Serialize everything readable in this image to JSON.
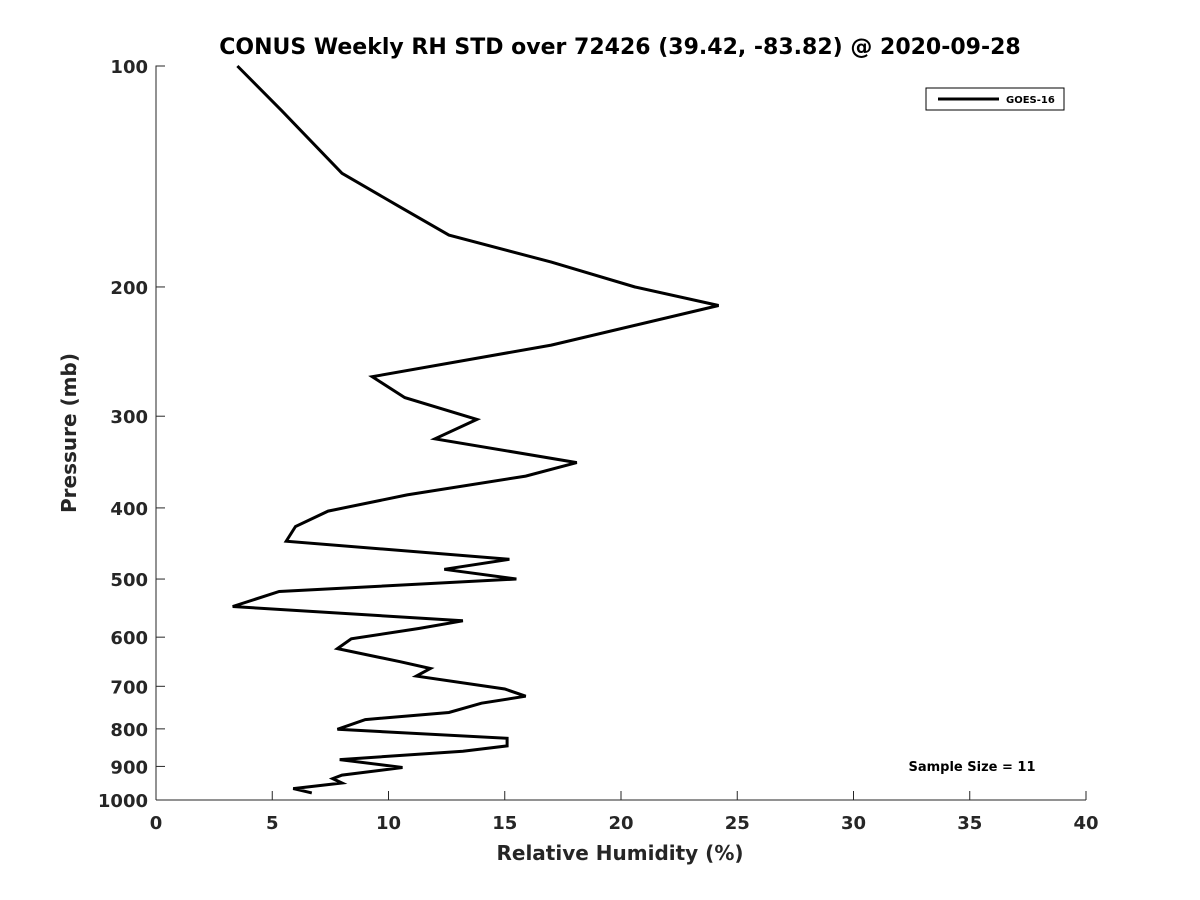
{
  "chart_data": {
    "type": "line",
    "title": "CONUS Weekly RH STD over 72426 (39.42, -83.82) @ 2020-09-28",
    "xlabel": "Relative Humidity (%)",
    "ylabel": "Pressure (mb)",
    "xlim": [
      0,
      40
    ],
    "ylim": [
      100,
      1000
    ],
    "yscale": "log",
    "y_reversed": true,
    "grid": false,
    "legend_position": "top-right",
    "xticks": [
      0,
      5,
      10,
      15,
      20,
      25,
      30,
      35,
      40
    ],
    "xtick_labels": [
      "0",
      "5",
      "10",
      "15",
      "20",
      "25",
      "30",
      "35",
      "40"
    ],
    "yticks": [
      100,
      200,
      300,
      400,
      500,
      600,
      700,
      800,
      900,
      1000
    ],
    "ytick_labels": [
      "100",
      "200",
      "300",
      "400",
      "500",
      "600",
      "700",
      "800",
      "900",
      "1000"
    ],
    "annotation": "Sample Size = 11",
    "series": [
      {
        "name": "GOES-16",
        "color": "#000000",
        "x": [
          3.5,
          5.4,
          8.0,
          10.4,
          12.6,
          17.0,
          20.6,
          24.2,
          17.0,
          9.3,
          10.7,
          13.8,
          12.0,
          18.1,
          15.9,
          10.8,
          7.4,
          6.0,
          5.6,
          15.2,
          12.4,
          15.5,
          5.3,
          3.3,
          13.2,
          11.3,
          8.4,
          7.8,
          10.5,
          11.8,
          11.2,
          15.0,
          15.9,
          14.0,
          12.6,
          9.0,
          7.8,
          15.1,
          15.1,
          13.2,
          7.9,
          10.6,
          8.0,
          7.6,
          8.0,
          5.9,
          6.7
        ],
        "y": [
          100,
          115,
          140,
          155,
          170,
          185,
          200,
          212,
          240,
          265,
          283,
          303,
          322,
          347,
          362,
          384,
          404,
          424,
          444,
          470,
          485,
          500,
          520,
          545,
          570,
          584,
          603,
          622,
          648,
          662,
          678,
          706,
          722,
          738,
          760,
          777,
          801,
          824,
          844,
          858,
          881,
          903,
          925,
          935,
          948,
          965,
          978
        ]
      }
    ]
  }
}
